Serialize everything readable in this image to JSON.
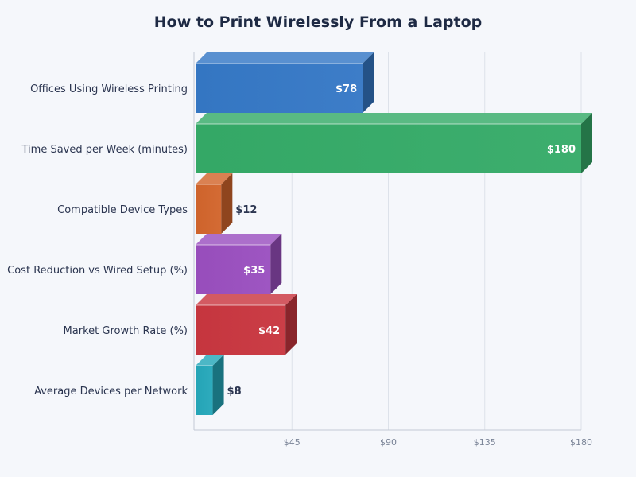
{
  "chart_data": {
    "type": "bar",
    "orientation": "horizontal",
    "title": "How to Print Wirelessly From a Laptop",
    "categories": [
      "Offices Using Wireless Printing",
      "Time Saved per Week (minutes)",
      "Compatible Device Types",
      "Cost Reduction vs Wired Setup (%)",
      "Market Growth Rate (%)",
      "Average Devices per Network"
    ],
    "values": [
      78,
      180,
      12,
      35,
      42,
      8
    ],
    "value_labels": [
      "$78",
      "$180",
      "$12",
      "$35",
      "$42",
      "$8"
    ],
    "colors": [
      "#3578c6",
      "#35ab68",
      "#d2652c",
      "#9a4fbf",
      "#c9363f",
      "#25a7ba"
    ],
    "xlim": [
      0,
      180
    ],
    "x_ticks": [
      45,
      90,
      135,
      180
    ],
    "x_tick_labels": [
      "$45",
      "$90",
      "$135",
      "$180"
    ],
    "grid": "vertical",
    "legend": "none"
  }
}
